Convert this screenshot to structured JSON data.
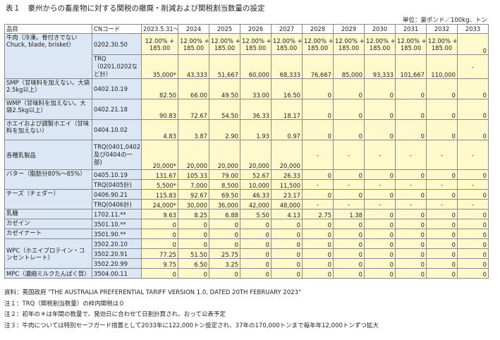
{
  "title": "表１　豪州からの畜産物に対する関税の撤廃・削減および関税割当数量の設定",
  "unit": "単位：豪ポンド／100kg、トン",
  "headers": {
    "product": "品目",
    "cn": "CNコード",
    "years": [
      "2023.5.31～",
      "2024",
      "2025",
      "2026",
      "2027",
      "2028",
      "2029",
      "2030",
      "2031",
      "2032",
      "2033"
    ]
  },
  "beef": {
    "name": "牛肉（冷凍。骨付きでない Chuck, blade, brisket）",
    "cn": "0202.30.50",
    "line1": [
      "12.00% +",
      "12.00% +",
      "12.00% +",
      "12.00% +",
      "12.00% +",
      "12.00% +",
      "12.00% +",
      "12.00% +",
      "12.00% +",
      "12.00% +"
    ],
    "line2": [
      "185.00",
      "185.00",
      "185.00",
      "185.00",
      "185.00",
      "185.00",
      "185.00",
      "185.00",
      "185.00",
      "185.00"
    ],
    "last": "0",
    "trq_cn": "TRQ（0201,0202など計）",
    "trq": [
      "35,000*",
      "43,333",
      "51,667",
      "60,000",
      "68,333",
      "76,667",
      "85,000",
      "93,333",
      "101,667",
      "110,000",
      "-"
    ]
  },
  "smp": {
    "name": "SMP（甘味料を加えない。大袋2.5kg以上）",
    "cn": "0402.10.19",
    "values": [
      "82.50",
      "66.00",
      "49.50",
      "33.00",
      "16.50",
      "0",
      "0",
      "0",
      "0",
      "0",
      "0"
    ]
  },
  "wmp": {
    "name": "WMP（甘味料を加えない。大袋2.5kg以上）",
    "cn": "0402.21.18",
    "values": [
      "90.83",
      "72.67",
      "54.50",
      "36.33",
      "18.17",
      "0",
      "0",
      "0",
      "0",
      "0",
      "0"
    ]
  },
  "whey": {
    "name": "ホエイおよび調製ホエイ（甘味料を加えない）",
    "cn": "0404.10.02",
    "values": [
      "4.83",
      "3.87",
      "2.90",
      "1.93",
      "0.97",
      "0",
      "0",
      "0",
      "0",
      "0",
      "0"
    ]
  },
  "dairy": {
    "name": "各種乳製品",
    "cn": "TRQ(0401,0402,0403及び0404の一部)",
    "values": [
      "20,000*",
      "20,000",
      "20,000",
      "20,000",
      "20,000",
      "-",
      "-",
      "-",
      "-",
      "-",
      "-"
    ]
  },
  "butter": {
    "name": "バター（脂肪分80%～85%）",
    "cn": "0405.10.19",
    "values": [
      "131.67",
      "105.33",
      "79.00",
      "52.67",
      "26.33",
      "0",
      "0",
      "0",
      "0",
      "0",
      "0"
    ],
    "trq_cn": "TRQ(0405計)",
    "trq": [
      "5,500*",
      "7,000",
      "8,500",
      "10,000",
      "11,500",
      "-",
      "-",
      "-",
      "-",
      "-",
      "-"
    ]
  },
  "cheese": {
    "name": "チーズ（チェダー）",
    "cn": "0406.90.21",
    "values": [
      "115.83",
      "92.67",
      "69.50",
      "46.33",
      "23.17",
      "0",
      "0",
      "0",
      "0",
      "0",
      "0"
    ],
    "trq_cn": "TRQ(0406計)",
    "trq": [
      "24,000*",
      "30,000",
      "36,000",
      "42,000",
      "48,000",
      "-",
      "-",
      "-",
      "-",
      "-",
      "-"
    ]
  },
  "lactose": {
    "name": "乳糖",
    "cn": "1702.11.**",
    "values": [
      "9.63",
      "8.25",
      "6.88",
      "5.50",
      "4.13",
      "2.75",
      "1.38",
      "0",
      "0",
      "0",
      "0"
    ]
  },
  "casein": {
    "name": "カゼイン",
    "cn": "3501.10.**",
    "values": [
      "0",
      "0",
      "0",
      "0",
      "0",
      "0",
      "0",
      "0",
      "0",
      "0",
      "0"
    ]
  },
  "caseinate": {
    "name": "カゼイナート",
    "cn": "3501.90.**",
    "values": [
      "0",
      "0",
      "0",
      "0",
      "0",
      "0",
      "0",
      "0",
      "0",
      "0",
      "0"
    ]
  },
  "wpc": {
    "name": "WPC（ホエイプロテイン・コンセントレート）",
    "rows": [
      {
        "cn": "3502.20.10",
        "values": [
          "0",
          "0",
          "0",
          "0",
          "0",
          "0",
          "0",
          "0",
          "0",
          "0",
          "0"
        ]
      },
      {
        "cn": "3502.20.91",
        "values": [
          "77.25",
          "51.50",
          "25.75",
          "0",
          "0",
          "0",
          "0",
          "0",
          "0",
          "0",
          "0"
        ]
      },
      {
        "cn": "3502.20.99",
        "values": [
          "9.75",
          "6.50",
          "3.25",
          "0",
          "0",
          "0",
          "0",
          "0",
          "0",
          "0",
          "0"
        ]
      }
    ]
  },
  "mpc": {
    "name": "MPC（濃縮ミルクたんぱく質）",
    "cn": "3504.00.11",
    "values": [
      "0",
      "0",
      "0",
      "0",
      "0",
      "0",
      "0",
      "0",
      "0",
      "0",
      "0"
    ]
  },
  "notes": [
    "資料：英国政府 \"THE AUSTRALIA PREFERENTIAL TARIFF VERSION 1.0, DATED 20TH FEBRUARY 2023\"",
    "注１：TRQ（関税割当数量）の枠内関税は０",
    "注２：初年の＊は年間の数量で、発効日に合わせて日割計算され、おって公表予定",
    "注３：牛肉については特別セーフガード措置として2033年に122,000トン設定され、37年の170,000トンまで毎年年12,000トンずつ拡大"
  ]
}
